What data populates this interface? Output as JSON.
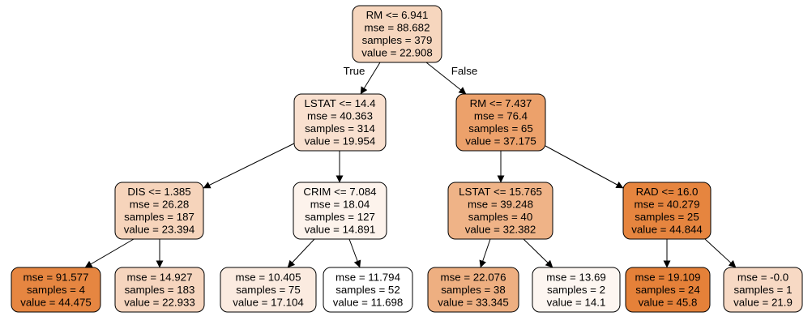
{
  "tree": {
    "nodes": [
      {
        "id": "n0",
        "lines": [
          "RM <= 6.941",
          "mse = 88.682",
          "samples = 379",
          "value = 22.908"
        ],
        "value": 22.908
      },
      {
        "id": "n1",
        "lines": [
          "LSTAT <= 14.4",
          "mse = 40.363",
          "samples = 314",
          "value = 19.954"
        ],
        "value": 19.954
      },
      {
        "id": "n2",
        "lines": [
          "RM <= 7.437",
          "mse = 76.4",
          "samples = 65",
          "value = 37.175"
        ],
        "value": 37.175
      },
      {
        "id": "n3",
        "lines": [
          "DIS <= 1.385",
          "mse = 26.28",
          "samples = 187",
          "value = 23.394"
        ],
        "value": 23.394
      },
      {
        "id": "n4",
        "lines": [
          "CRIM <= 7.084",
          "mse = 18.04",
          "samples = 127",
          "value = 14.891"
        ],
        "value": 14.891
      },
      {
        "id": "n5",
        "lines": [
          "LSTAT <= 15.765",
          "mse = 39.248",
          "samples = 40",
          "value = 32.382"
        ],
        "value": 32.382
      },
      {
        "id": "n6",
        "lines": [
          "RAD <= 16.0",
          "mse = 40.279",
          "samples = 25",
          "value = 44.844"
        ],
        "value": 44.844
      },
      {
        "id": "n7",
        "lines": [
          "mse = 91.577",
          "samples = 4",
          "value = 44.475"
        ],
        "value": 44.475
      },
      {
        "id": "n8",
        "lines": [
          "mse = 14.927",
          "samples = 183",
          "value = 22.933"
        ],
        "value": 22.933
      },
      {
        "id": "n9",
        "lines": [
          "mse = 10.405",
          "samples = 75",
          "value = 17.104"
        ],
        "value": 17.104
      },
      {
        "id": "n10",
        "lines": [
          "mse = 11.794",
          "samples = 52",
          "value = 11.698"
        ],
        "value": 11.698
      },
      {
        "id": "n11",
        "lines": [
          "mse = 22.076",
          "samples = 38",
          "value = 33.345"
        ],
        "value": 33.345
      },
      {
        "id": "n12",
        "lines": [
          "mse = 13.69",
          "samples = 2",
          "value = 14.1"
        ],
        "value": 14.1
      },
      {
        "id": "n13",
        "lines": [
          "mse = 19.109",
          "samples = 24",
          "value = 45.8"
        ],
        "value": 45.8
      },
      {
        "id": "n14",
        "lines": [
          "mse = -0.0",
          "samples = 1",
          "value = 21.9"
        ],
        "value": 21.9
      }
    ],
    "edges": [
      {
        "from": "n0",
        "to": "n1",
        "label": "True"
      },
      {
        "from": "n0",
        "to": "n2",
        "label": "False"
      },
      {
        "from": "n1",
        "to": "n3",
        "label": ""
      },
      {
        "from": "n1",
        "to": "n4",
        "label": ""
      },
      {
        "from": "n2",
        "to": "n5",
        "label": ""
      },
      {
        "from": "n2",
        "to": "n6",
        "label": ""
      },
      {
        "from": "n3",
        "to": "n7",
        "label": ""
      },
      {
        "from": "n3",
        "to": "n8",
        "label": ""
      },
      {
        "from": "n4",
        "to": "n9",
        "label": ""
      },
      {
        "from": "n4",
        "to": "n10",
        "label": ""
      },
      {
        "from": "n5",
        "to": "n11",
        "label": ""
      },
      {
        "from": "n5",
        "to": "n12",
        "label": ""
      },
      {
        "from": "n6",
        "to": "n13",
        "label": ""
      },
      {
        "from": "n6",
        "to": "n14",
        "label": ""
      }
    ],
    "value_range": [
      11.698,
      45.8
    ],
    "colors": {
      "high": "#e58139",
      "low": "#ffffff",
      "stroke": "#000000",
      "edge": "#000000"
    }
  }
}
